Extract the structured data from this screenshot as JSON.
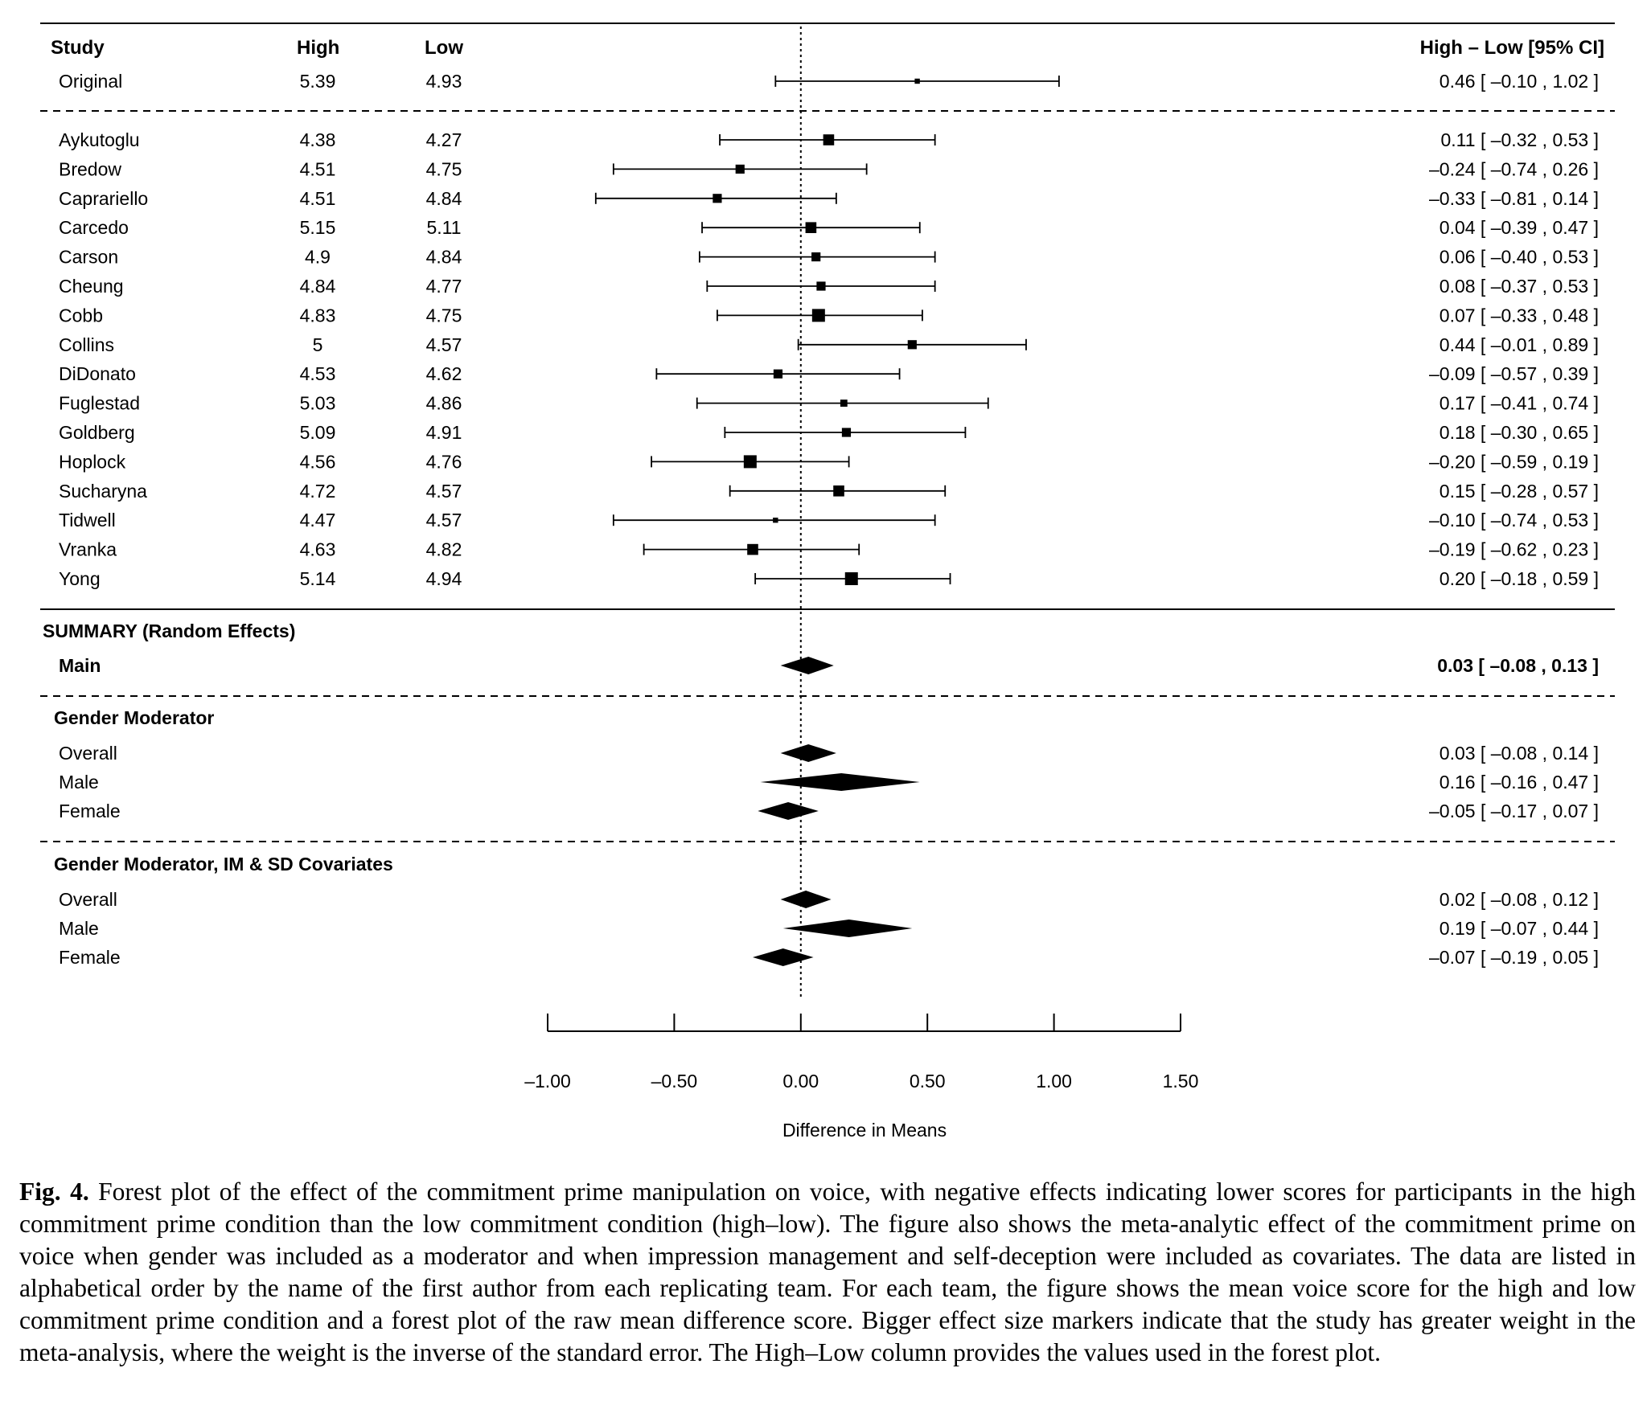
{
  "header": {
    "study": "Study",
    "high": "High",
    "low": "Low",
    "estimate": "High – Low [95% CI]"
  },
  "chart_data": {
    "type": "forest",
    "xlabel": "Difference in Means",
    "xlim": [
      -1.0,
      1.5
    ],
    "xticks": [
      -1.0,
      -0.5,
      0.0,
      0.5,
      1.0,
      1.5
    ],
    "xtick_labels": [
      "–1.00",
      "–0.50",
      "0.00",
      "0.50",
      "1.00",
      "1.50"
    ],
    "reference_line": 0,
    "original": {
      "name": "Original",
      "high": "5.39",
      "low": "4.93",
      "est": 0.46,
      "lo": -0.1,
      "hi": 1.02,
      "size": 1,
      "label": "0.46 [ –0.10 , 1.02 ]"
    },
    "studies": [
      {
        "name": "Aykutoglu",
        "high": "4.38",
        "low": "4.27",
        "est": 0.11,
        "lo": -0.32,
        "hi": 0.53,
        "size": 4,
        "label": "0.11 [ –0.32 , 0.53 ]"
      },
      {
        "name": "Bredow",
        "high": "4.51",
        "low": "4.75",
        "est": -0.24,
        "lo": -0.74,
        "hi": 0.26,
        "size": 3,
        "label": "–0.24 [ –0.74 , 0.26 ]"
      },
      {
        "name": "Caprariello",
        "high": "4.51",
        "low": "4.84",
        "est": -0.33,
        "lo": -0.81,
        "hi": 0.14,
        "size": 3,
        "label": "–0.33 [ –0.81 , 0.14 ]"
      },
      {
        "name": "Carcedo",
        "high": "5.15",
        "low": "5.11",
        "est": 0.04,
        "lo": -0.39,
        "hi": 0.47,
        "size": 4,
        "label": "0.04 [ –0.39 , 0.47 ]"
      },
      {
        "name": "Carson",
        "high": "4.9",
        "low": "4.84",
        "est": 0.06,
        "lo": -0.4,
        "hi": 0.53,
        "size": 3,
        "label": "0.06 [ –0.40 , 0.53 ]"
      },
      {
        "name": "Cheung",
        "high": "4.84",
        "low": "4.77",
        "est": 0.08,
        "lo": -0.37,
        "hi": 0.53,
        "size": 3,
        "label": "0.08 [ –0.37 , 0.53 ]"
      },
      {
        "name": "Cobb",
        "high": "4.83",
        "low": "4.75",
        "est": 0.07,
        "lo": -0.33,
        "hi": 0.48,
        "size": 5,
        "label": "0.07 [ –0.33 , 0.48 ]"
      },
      {
        "name": "Collins",
        "high": "5",
        "low": "4.57",
        "est": 0.44,
        "lo": -0.01,
        "hi": 0.89,
        "size": 3,
        "label": "0.44 [ –0.01 , 0.89 ]"
      },
      {
        "name": "DiDonato",
        "high": "4.53",
        "low": "4.62",
        "est": -0.09,
        "lo": -0.57,
        "hi": 0.39,
        "size": 3,
        "label": "–0.09 [ –0.57 , 0.39 ]"
      },
      {
        "name": "Fuglestad",
        "high": "5.03",
        "low": "4.86",
        "est": 0.17,
        "lo": -0.41,
        "hi": 0.74,
        "size": 2,
        "label": "0.17 [ –0.41 , 0.74 ]"
      },
      {
        "name": "Goldberg",
        "high": "5.09",
        "low": "4.91",
        "est": 0.18,
        "lo": -0.3,
        "hi": 0.65,
        "size": 3,
        "label": "0.18 [ –0.30 , 0.65 ]"
      },
      {
        "name": "Hoplock",
        "high": "4.56",
        "low": "4.76",
        "est": -0.2,
        "lo": -0.59,
        "hi": 0.19,
        "size": 5,
        "label": "–0.20 [ –0.59 , 0.19 ]"
      },
      {
        "name": "Sucharyna",
        "high": "4.72",
        "low": "4.57",
        "est": 0.15,
        "lo": -0.28,
        "hi": 0.57,
        "size": 4,
        "label": "0.15 [ –0.28 , 0.57 ]"
      },
      {
        "name": "Tidwell",
        "high": "4.47",
        "low": "4.57",
        "est": -0.1,
        "lo": -0.74,
        "hi": 0.53,
        "size": 1,
        "label": "–0.10 [ –0.74 , 0.53 ]"
      },
      {
        "name": "Vranka",
        "high": "4.63",
        "low": "4.82",
        "est": -0.19,
        "lo": -0.62,
        "hi": 0.23,
        "size": 4,
        "label": "–0.19 [ –0.62 , 0.23 ]"
      },
      {
        "name": "Yong",
        "high": "5.14",
        "low": "4.94",
        "est": 0.2,
        "lo": -0.18,
        "hi": 0.59,
        "size": 5,
        "label": "0.20 [ –0.18 , 0.59 ]"
      }
    ],
    "groups": [
      {
        "heading": "SUMMARY (Random Effects)",
        "rows": [
          {
            "name": "Main",
            "est": 0.03,
            "lo": -0.08,
            "hi": 0.13,
            "label": "0.03 [ –0.08 , 0.13 ]",
            "bold": true
          }
        ]
      },
      {
        "heading": "Gender Moderator",
        "rows": [
          {
            "name": "Overall",
            "est": 0.03,
            "lo": -0.08,
            "hi": 0.14,
            "label": "0.03 [ –0.08 , 0.14 ]"
          },
          {
            "name": "Male",
            "est": 0.16,
            "lo": -0.16,
            "hi": 0.47,
            "label": "0.16 [ –0.16 , 0.47 ]"
          },
          {
            "name": "Female",
            "est": -0.05,
            "lo": -0.17,
            "hi": 0.07,
            "label": "–0.05 [ –0.17 , 0.07 ]"
          }
        ]
      },
      {
        "heading": "Gender Moderator, IM & SD Covariates",
        "rows": [
          {
            "name": "Overall",
            "est": 0.02,
            "lo": -0.08,
            "hi": 0.12,
            "label": "0.02 [ –0.08 , 0.12 ]"
          },
          {
            "name": "Male",
            "est": 0.19,
            "lo": -0.07,
            "hi": 0.44,
            "label": "0.19 [ –0.07 , 0.44 ]"
          },
          {
            "name": "Female",
            "est": -0.07,
            "lo": -0.19,
            "hi": 0.05,
            "label": "–0.07 [ –0.19 , 0.05 ]"
          }
        ]
      }
    ]
  },
  "caption": {
    "label": "Fig. 4.",
    "text": " Forest plot of the effect of the commitment prime manipulation on voice, with negative effects indicating lower scores for participants in the high commitment prime condition than the low commitment condition (high–low). The figure also shows the meta-analytic effect of the commitment prime on voice when gender was included as a moderator and when impression management and self-deception were included as covariates. The data are listed in alphabetical order by the name of the first author from each replicating team. For each team, the figure shows the mean voice score for the high and low commitment prime condition and a forest plot of the raw mean difference score. Bigger effect size markers indicate that the study has greater weight in the meta-analysis, where the weight is the inverse of the standard error. The High–Low column provides the values used in the forest plot."
  }
}
